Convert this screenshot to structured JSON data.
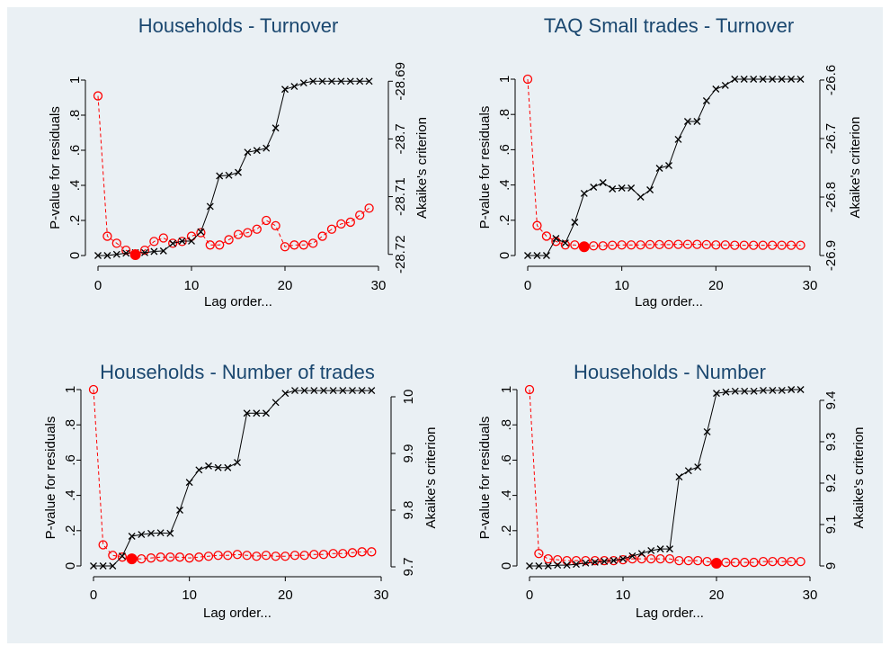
{
  "chart_data": [
    {
      "type": "line",
      "title": "Households - Turnover",
      "xlabel": "Lag order...",
      "ylabel": "P-value for residuals",
      "y2label": "Akaike's criterion",
      "x": [
        0,
        1,
        2,
        3,
        4,
        5,
        6,
        7,
        8,
        9,
        10,
        11,
        12,
        13,
        14,
        15,
        16,
        17,
        18,
        19,
        20,
        21,
        22,
        23,
        24,
        25,
        26,
        27,
        28,
        29
      ],
      "xlim": [
        0,
        30
      ],
      "xticks": [
        0,
        10,
        20,
        30
      ],
      "ylim": [
        0,
        1
      ],
      "yticks": [
        0,
        {
          "value": 0.2,
          "label": ".2"
        },
        {
          "value": 0.4,
          "label": ".4"
        },
        {
          "value": 0.6,
          "label": ".6"
        },
        {
          "value": 0.8,
          "label": ".8"
        },
        1
      ],
      "y2lim": [
        -28.7202,
        -28.6898
      ],
      "y2ticks": [
        -28.72,
        -28.71,
        -28.7,
        -28.69
      ],
      "highlight_x": 4,
      "series": [
        {
          "color": "#ff0000",
          "marker": "circle",
          "linestyle": "dashed",
          "axis": "y",
          "values": [
            0.91,
            0.11,
            0.07,
            0.03,
            0.005,
            0.03,
            0.08,
            0.1,
            0.07,
            0.08,
            0.11,
            0.13,
            0.06,
            0.06,
            0.09,
            0.12,
            0.13,
            0.15,
            0.2,
            0.17,
            0.05,
            0.06,
            0.06,
            0.07,
            0.11,
            0.15,
            0.18,
            0.19,
            0.23,
            0.27
          ]
        },
        {
          "color": "#000000",
          "marker": "x",
          "linestyle": "solid",
          "axis": "y2",
          "values": [
            -28.7202,
            -28.7202,
            -28.72,
            -28.7198,
            -28.7197,
            -28.7197,
            -28.7195,
            -28.7194,
            -28.7181,
            -28.7177,
            -28.7177,
            -28.7161,
            -28.7117,
            -28.7064,
            -28.7063,
            -28.7058,
            -28.7023,
            -28.702,
            -28.7016,
            -28.6981,
            -28.6914,
            -28.6909,
            -28.6903,
            -28.69,
            -28.69,
            -28.69,
            -28.69,
            -28.69,
            -28.69,
            -28.69
          ]
        }
      ]
    },
    {
      "type": "line",
      "title": "TAQ Small trades - Turnover",
      "xlabel": "Lag order...",
      "ylabel": "P-value for residuals",
      "y2label": "Akaike's criterion",
      "x": [
        0,
        1,
        2,
        3,
        4,
        5,
        6,
        7,
        8,
        9,
        10,
        11,
        12,
        13,
        14,
        15,
        16,
        17,
        18,
        19,
        20,
        21,
        22,
        23,
        24,
        25,
        26,
        27,
        28,
        29
      ],
      "xlim": [
        0,
        30
      ],
      "xticks": [
        0,
        10,
        20,
        30
      ],
      "ylim": [
        0,
        1
      ],
      "yticks": [
        0,
        {
          "value": 0.2,
          "label": ".2"
        },
        {
          "value": 0.4,
          "label": ".4"
        },
        {
          "value": 0.6,
          "label": ".6"
        },
        {
          "value": 0.8,
          "label": ".8"
        },
        1
      ],
      "y2lim": [
        -26.9,
        -26.5985
      ],
      "y2ticks": [
        -26.9,
        -26.8,
        -26.7,
        -26.6
      ],
      "highlight_x": 6,
      "series": [
        {
          "color": "#ff0000",
          "marker": "circle",
          "linestyle": "dashed",
          "axis": "y",
          "values": [
            1.0,
            0.17,
            0.11,
            0.08,
            0.06,
            0.06,
            0.05,
            0.055,
            0.055,
            0.058,
            0.06,
            0.06,
            0.06,
            0.062,
            0.062,
            0.062,
            0.063,
            0.063,
            0.063,
            0.062,
            0.06,
            0.06,
            0.058,
            0.058,
            0.058,
            0.058,
            0.058,
            0.058,
            0.058,
            0.058
          ]
        },
        {
          "color": "#000000",
          "marker": "x",
          "linestyle": "solid",
          "axis": "y2",
          "values": [
            -26.9,
            -26.9,
            -26.9,
            -26.8708,
            -26.8785,
            -26.8431,
            -26.7938,
            -26.7831,
            -26.7754,
            -26.7862,
            -26.7846,
            -26.7846,
            -26.8,
            -26.7877,
            -26.7508,
            -26.7462,
            -26.7015,
            -26.6708,
            -26.6708,
            -26.6354,
            -26.6154,
            -26.6092,
            -26.5985,
            -26.5985,
            -26.5985,
            -26.5985,
            -26.5985,
            -26.5985,
            -26.5985,
            -26.5985
          ]
        }
      ]
    },
    {
      "type": "line",
      "title": "Households - Number of trades",
      "xlabel": "Lag order...",
      "ylabel": "P-value for residuals",
      "y2label": "Akaike's criterion",
      "x": [
        0,
        1,
        2,
        3,
        4,
        5,
        6,
        7,
        8,
        9,
        10,
        11,
        12,
        13,
        14,
        15,
        16,
        17,
        18,
        19,
        20,
        21,
        22,
        23,
        24,
        25,
        26,
        27,
        28,
        29
      ],
      "xlim": [
        0,
        30
      ],
      "xticks": [
        0,
        10,
        20,
        30
      ],
      "ylim": [
        0,
        1
      ],
      "yticks": [
        0,
        {
          "value": 0.2,
          "label": ".2"
        },
        {
          "value": 0.4,
          "label": ".4"
        },
        {
          "value": 0.6,
          "label": ".6"
        },
        {
          "value": 0.8,
          "label": ".8"
        },
        1
      ],
      "y2lim": [
        9.7016,
        10.0127
      ],
      "y2ticks": [
        9.7,
        9.8,
        9.9,
        10
      ],
      "highlight_x": 4,
      "series": [
        {
          "color": "#ff0000",
          "marker": "circle",
          "linestyle": "dashed",
          "axis": "y",
          "values": [
            1.0,
            0.12,
            0.06,
            0.05,
            0.04,
            0.04,
            0.045,
            0.05,
            0.05,
            0.05,
            0.045,
            0.05,
            0.055,
            0.06,
            0.06,
            0.065,
            0.06,
            0.055,
            0.06,
            0.055,
            0.055,
            0.06,
            0.06,
            0.065,
            0.065,
            0.07,
            0.07,
            0.075,
            0.08,
            0.08
          ]
        },
        {
          "color": "#000000",
          "marker": "x",
          "linestyle": "solid",
          "axis": "y2",
          "values": [
            9.7016,
            9.7016,
            9.7016,
            9.719,
            9.754,
            9.757,
            9.759,
            9.76,
            9.759,
            9.8,
            9.849,
            9.871,
            9.878,
            9.875,
            9.875,
            9.884,
            9.971,
            9.971,
            9.971,
            9.99,
            10.006,
            10.011,
            10.011,
            10.011,
            10.011,
            10.011,
            10.011,
            10.011,
            10.011,
            10.011
          ]
        }
      ]
    },
    {
      "type": "line",
      "title": "Households - Number",
      "xlabel": "Lag order...",
      "ylabel": "P-value for residuals",
      "y2label": "Akaike's criterion",
      "x": [
        0,
        1,
        2,
        3,
        4,
        5,
        6,
        7,
        8,
        9,
        10,
        11,
        12,
        13,
        14,
        15,
        16,
        17,
        18,
        19,
        20,
        21,
        22,
        23,
        24,
        25,
        26,
        27,
        28,
        29
      ],
      "xlim": [
        0,
        30
      ],
      "xticks": [
        0,
        10,
        20,
        30
      ],
      "ylim": [
        0,
        1
      ],
      "yticks": [
        0,
        {
          "value": 0.2,
          "label": ".2"
        },
        {
          "value": 0.4,
          "label": ".4"
        },
        {
          "value": 0.6,
          "label": ".6"
        },
        {
          "value": 0.8,
          "label": ".8"
        },
        1
      ],
      "y2lim": [
        9,
        9.426
      ],
      "y2ticks": [
        9,
        9.1,
        9.2,
        9.3,
        9.4
      ],
      "highlight_x": 20,
      "series": [
        {
          "color": "#ff0000",
          "marker": "circle",
          "linestyle": "dashed",
          "axis": "y",
          "values": [
            1.0,
            0.07,
            0.04,
            0.035,
            0.03,
            0.03,
            0.03,
            0.03,
            0.03,
            0.03,
            0.035,
            0.04,
            0.04,
            0.04,
            0.04,
            0.04,
            0.03,
            0.03,
            0.03,
            0.025,
            0.015,
            0.02,
            0.02,
            0.02,
            0.02,
            0.025,
            0.025,
            0.025,
            0.025,
            0.025
          ]
        },
        {
          "color": "#000000",
          "marker": "x",
          "linestyle": "solid",
          "axis": "y2",
          "values": [
            9,
            9,
            9,
            9.002,
            9.002,
            9.004,
            9.007,
            9.009,
            9.011,
            9.013,
            9.017,
            9.024,
            9.03,
            9.037,
            9.041,
            9.041,
            9.215,
            9.23,
            9.239,
            9.324,
            9.417,
            9.42,
            9.422,
            9.422,
            9.422,
            9.424,
            9.424,
            9.424,
            9.426,
            9.426
          ]
        }
      ]
    }
  ]
}
